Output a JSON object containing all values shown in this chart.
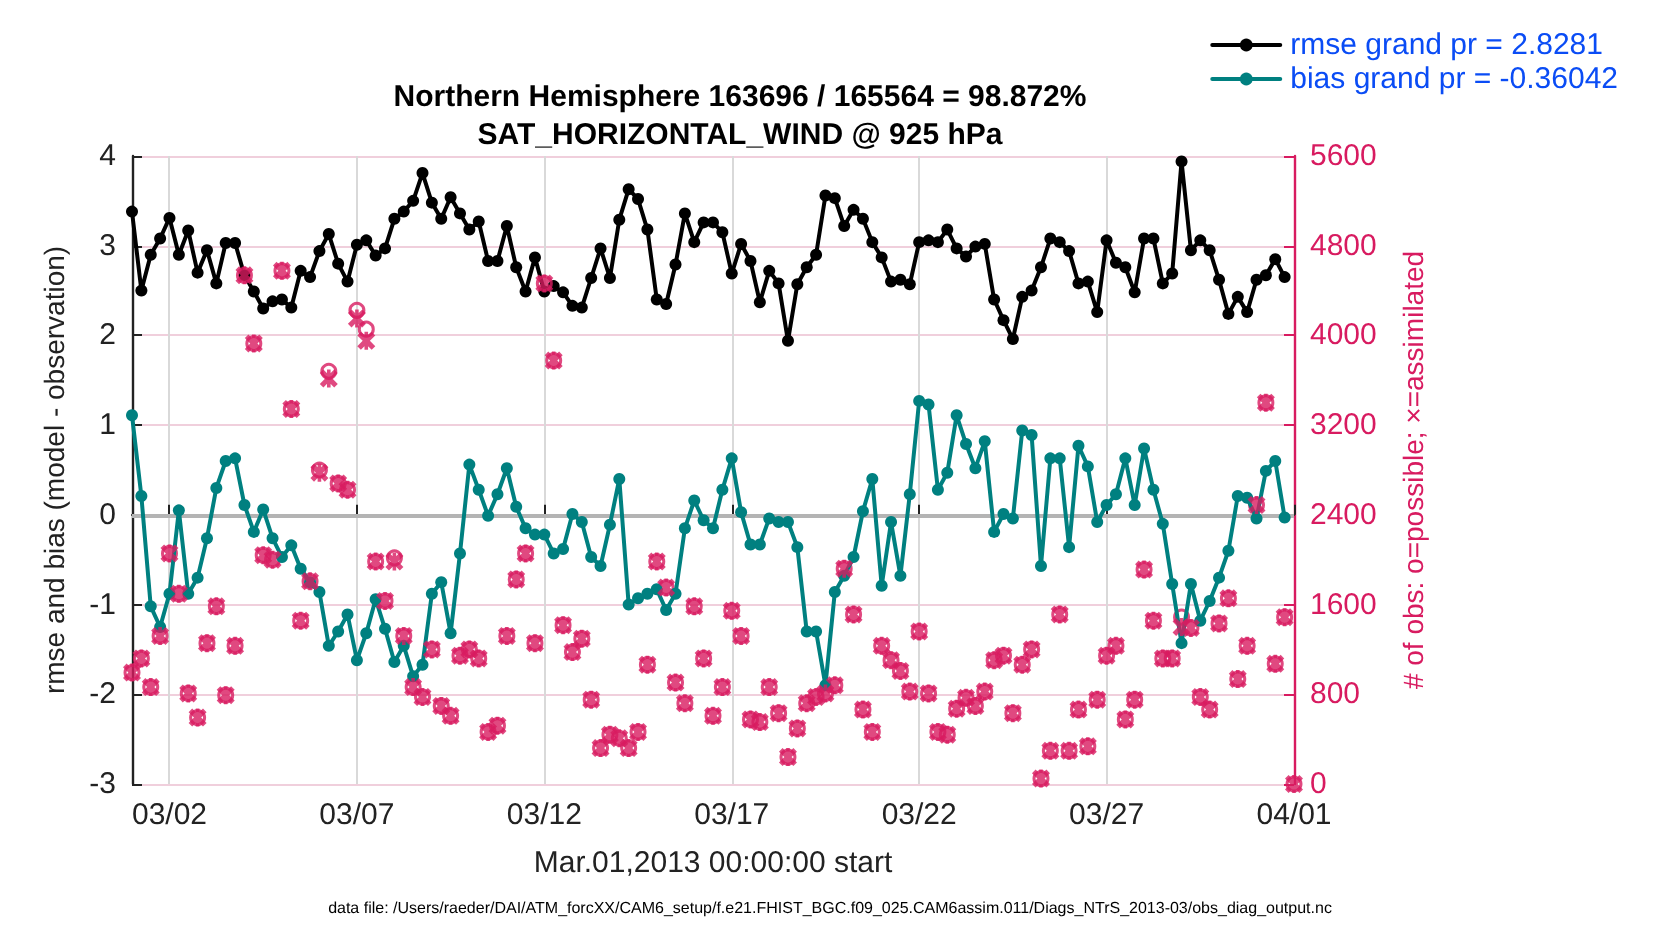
{
  "chart_data": {
    "type": "line",
    "title": "Northern Hemisphere 163696 / 165564 = 98.872%",
    "subtitle": "SAT_HORIZONTAL_WIND @ 925 hPa",
    "xlabel": "Mar.01,2013 00:00:00 start",
    "ylabel": "rmse and bias (model - observation)",
    "y2label": "# of obs: o=possible; ×=assimilated",
    "annotations": [
      "data file: /Users/raeder/DAI/ATM_forcXX/CAM6_setup/f.e21.FHIST_BGC.f09_025.CAM6assim.011/Diags_NTrS_2013-03/obs_diag_output.nc"
    ],
    "x": [
      "2013-03-01T00:00",
      "2013-03-01T06:00",
      "2013-03-01T12:00",
      "2013-03-01T18:00",
      "2013-03-02T00:00",
      "2013-03-02T06:00",
      "2013-03-02T12:00",
      "2013-03-02T18:00",
      "2013-03-03T00:00",
      "2013-03-03T06:00",
      "2013-03-03T12:00",
      "2013-03-03T18:00",
      "2013-03-04T00:00",
      "2013-03-04T06:00",
      "2013-03-04T12:00",
      "2013-03-04T18:00",
      "2013-03-05T00:00",
      "2013-03-05T06:00",
      "2013-03-05T12:00",
      "2013-03-05T18:00",
      "2013-03-06T00:00",
      "2013-03-06T06:00",
      "2013-03-06T12:00",
      "2013-03-06T18:00",
      "2013-03-07T00:00",
      "2013-03-07T06:00",
      "2013-03-07T12:00",
      "2013-03-07T18:00",
      "2013-03-08T00:00",
      "2013-03-08T06:00",
      "2013-03-08T12:00",
      "2013-03-08T18:00",
      "2013-03-09T00:00",
      "2013-03-09T06:00",
      "2013-03-09T12:00",
      "2013-03-09T18:00",
      "2013-03-10T00:00",
      "2013-03-10T06:00",
      "2013-03-10T12:00",
      "2013-03-10T18:00",
      "2013-03-11T00:00",
      "2013-03-11T06:00",
      "2013-03-11T12:00",
      "2013-03-11T18:00",
      "2013-03-12T00:00",
      "2013-03-12T06:00",
      "2013-03-12T12:00",
      "2013-03-12T18:00",
      "2013-03-13T00:00",
      "2013-03-13T06:00",
      "2013-03-13T12:00",
      "2013-03-13T18:00",
      "2013-03-14T00:00",
      "2013-03-14T06:00",
      "2013-03-14T12:00",
      "2013-03-14T18:00",
      "2013-03-15T00:00",
      "2013-03-15T06:00",
      "2013-03-15T12:00",
      "2013-03-15T18:00",
      "2013-03-16T00:00",
      "2013-03-16T06:00",
      "2013-03-16T12:00",
      "2013-03-16T18:00",
      "2013-03-17T00:00",
      "2013-03-17T06:00",
      "2013-03-17T12:00",
      "2013-03-17T18:00",
      "2013-03-18T00:00",
      "2013-03-18T06:00",
      "2013-03-18T12:00",
      "2013-03-18T18:00",
      "2013-03-19T00:00",
      "2013-03-19T06:00",
      "2013-03-19T12:00",
      "2013-03-19T18:00",
      "2013-03-20T00:00",
      "2013-03-20T06:00",
      "2013-03-20T12:00",
      "2013-03-20T18:00",
      "2013-03-21T00:00",
      "2013-03-21T06:00",
      "2013-03-21T12:00",
      "2013-03-21T18:00",
      "2013-03-22T00:00",
      "2013-03-22T06:00",
      "2013-03-22T12:00",
      "2013-03-22T18:00",
      "2013-03-23T00:00",
      "2013-03-23T06:00",
      "2013-03-23T12:00",
      "2013-03-23T18:00",
      "2013-03-24T00:00",
      "2013-03-24T06:00",
      "2013-03-24T12:00",
      "2013-03-24T18:00",
      "2013-03-25T00:00",
      "2013-03-25T06:00",
      "2013-03-25T12:00",
      "2013-03-25T18:00",
      "2013-03-26T00:00",
      "2013-03-26T06:00",
      "2013-03-26T12:00",
      "2013-03-26T18:00",
      "2013-03-27T00:00",
      "2013-03-27T06:00",
      "2013-03-27T12:00",
      "2013-03-27T18:00",
      "2013-03-28T00:00",
      "2013-03-28T06:00",
      "2013-03-28T12:00",
      "2013-03-28T18:00",
      "2013-03-29T00:00",
      "2013-03-29T06:00",
      "2013-03-29T12:00",
      "2013-03-29T18:00",
      "2013-03-30T00:00",
      "2013-03-30T06:00",
      "2013-03-30T12:00",
      "2013-03-30T18:00",
      "2013-03-31T00:00",
      "2013-03-31T06:00",
      "2013-03-31T12:00",
      "2013-03-31T18:00",
      "2013-04-01T00:00"
    ],
    "series": [
      {
        "name": "rmse grand pr = 2.8281",
        "color": "#000000",
        "marker": "circle",
        "values": [
          3.38,
          2.5,
          2.9,
          3.08,
          3.31,
          2.9,
          3.17,
          2.7,
          2.95,
          2.58,
          3.03,
          3.03,
          2.67,
          2.49,
          2.3,
          2.38,
          2.4,
          2.31,
          2.72,
          2.65,
          2.94,
          3.13,
          2.8,
          2.6,
          3.01,
          3.06,
          2.89,
          2.97,
          3.3,
          3.38,
          3.5,
          3.81,
          3.48,
          3.3,
          3.54,
          3.36,
          3.18,
          3.27,
          2.83,
          2.83,
          3.22,
          2.76,
          2.49,
          2.87,
          2.49,
          2.55,
          2.48,
          2.33,
          2.31,
          2.64,
          2.97,
          2.64,
          3.29,
          3.63,
          3.52,
          3.18,
          2.4,
          2.35,
          2.79,
          3.36,
          3.04,
          3.26,
          3.26,
          3.15,
          2.69,
          3.02,
          2.83,
          2.37,
          2.72,
          2.58,
          1.94,
          2.57,
          2.76,
          2.9,
          3.56,
          3.53,
          3.22,
          3.4,
          3.3,
          3.04,
          2.87,
          2.6,
          2.62,
          2.57,
          3.04,
          3.06,
          3.04,
          3.18,
          2.97,
          2.88,
          2.99,
          3.02,
          2.4,
          2.17,
          1.96,
          2.43,
          2.5,
          2.76,
          3.08,
          3.04,
          2.94,
          2.58,
          2.6,
          2.26,
          3.06,
          2.81,
          2.76,
          2.48,
          3.08,
          3.08,
          2.58,
          2.69,
          3.94,
          2.95,
          3.06,
          2.95,
          2.62,
          2.24,
          2.43,
          2.26,
          2.62,
          2.67,
          2.85,
          2.65,
          null
        ]
      },
      {
        "name": "bias grand pr = -0.36042",
        "color": "#008080",
        "marker": "circle",
        "values": [
          1.11,
          0.21,
          -1.02,
          -1.25,
          -0.88,
          0.05,
          -0.88,
          -0.7,
          -0.26,
          0.3,
          0.6,
          0.63,
          0.11,
          -0.19,
          0.06,
          -0.26,
          -0.47,
          -0.34,
          -0.6,
          -0.75,
          -0.86,
          -1.46,
          -1.3,
          -1.11,
          -1.62,
          -1.32,
          -0.94,
          -1.27,
          -1.64,
          -1.46,
          -1.8,
          -1.67,
          -0.88,
          -0.75,
          -1.32,
          -0.43,
          0.56,
          0.28,
          -0.01,
          0.23,
          0.52,
          0.09,
          -0.15,
          -0.22,
          -0.22,
          -0.43,
          -0.38,
          0.01,
          -0.08,
          -0.47,
          -0.57,
          -0.11,
          0.4,
          -1.0,
          -0.93,
          -0.88,
          -0.83,
          -1.06,
          -0.88,
          -0.15,
          0.16,
          -0.06,
          -0.15,
          0.28,
          0.63,
          0.03,
          -0.33,
          -0.33,
          -0.04,
          -0.08,
          -0.08,
          -0.36,
          -1.3,
          -1.3,
          -1.9,
          -0.86,
          -0.68,
          -0.47,
          0.04,
          0.4,
          -0.79,
          -0.08,
          -0.68,
          0.23,
          1.27,
          1.23,
          0.28,
          0.47,
          1.11,
          0.79,
          0.52,
          0.82,
          -0.19,
          0.01,
          -0.04,
          0.94,
          0.89,
          -0.57,
          0.63,
          0.63,
          -0.36,
          0.77,
          0.54,
          -0.08,
          0.11,
          0.23,
          0.63,
          0.11,
          0.74,
          0.28,
          -0.1,
          -0.77,
          -1.43,
          -0.77,
          -1.18,
          -0.96,
          -0.7,
          -0.4,
          0.21,
          0.19,
          -0.04,
          0.49,
          0.6,
          -0.03,
          null
        ]
      },
      {
        "type": "scatter",
        "axis": "y2",
        "color": "#d81b60",
        "marker": "circle",
        "values": [
          994,
          1120,
          864,
          1320,
          2056,
          1696,
          808,
          592,
          1256,
          1584,
          792,
          1232,
          4536,
          3928,
          2040,
          2000,
          4576,
          3344,
          1456,
          1808,
          2800,
          3680,
          2680,
          2624,
          4224,
          4056,
          1984,
          1632,
          2016,
          1320,
          864,
          776,
          1200,
          696,
          608,
          1144,
          1200,
          1120,
          464,
          520,
          1320,
          1824,
          2056,
          1256,
          4464,
          3776,
          1416,
          1176,
          1296,
          752,
          320,
          440,
          408,
          320,
          464,
          1064,
          1984,
          1752,
          904,
          720,
          1584,
          1120,
          608,
          864,
          1544,
          1320,
          576,
          552,
          864,
          632,
          240,
          496,
          720,
          776,
          808,
          880,
          1920,
          1512,
          664,
          464,
          1232,
          1104,
          1008,
          824,
          1360,
          808,
          464,
          440,
          672,
          768,
          696,
          824,
          1104,
          1144,
          632,
          1064,
          1200,
          48,
          296,
          1512,
          296,
          664,
          336,
          752,
          1144,
          1232,
          576,
          752,
          1912,
          1456,
          1120,
          1120,
          1488,
          1392,
          776,
          664,
          1432,
          1656,
          936,
          1232,
          2488,
          3400,
          1072,
          1488,
          0
        ]
      },
      {
        "type": "scatter",
        "axis": "y2",
        "color": "#d81b60",
        "marker": "cross",
        "values": [
          994,
          1120,
          864,
          1320,
          2056,
          1696,
          808,
          592,
          1256,
          1584,
          792,
          1232,
          4536,
          3928,
          2040,
          2000,
          4576,
          3344,
          1456,
          1808,
          2776,
          3616,
          2680,
          2624,
          4152,
          3952,
          1984,
          1632,
          1984,
          1320,
          864,
          776,
          1200,
          696,
          608,
          1144,
          1200,
          1120,
          464,
          520,
          1320,
          1824,
          2056,
          1256,
          4464,
          3776,
          1416,
          1176,
          1296,
          752,
          320,
          440,
          408,
          320,
          464,
          1064,
          1984,
          1752,
          904,
          720,
          1584,
          1120,
          608,
          864,
          1544,
          1320,
          576,
          552,
          864,
          632,
          240,
          496,
          720,
          776,
          808,
          880,
          1920,
          1512,
          664,
          464,
          1232,
          1104,
          1008,
          824,
          1360,
          808,
          464,
          440,
          672,
          768,
          696,
          824,
          1104,
          1144,
          632,
          1064,
          1200,
          48,
          296,
          1512,
          296,
          664,
          336,
          752,
          1144,
          1232,
          576,
          752,
          1912,
          1456,
          1120,
          1120,
          1400,
          1392,
          776,
          664,
          1432,
          1656,
          936,
          1232,
          2488,
          3400,
          1072,
          1488,
          0
        ]
      }
    ],
    "xlim": [
      "2013-03-01",
      "2013-04-01"
    ],
    "xticks": [
      {
        "value": "2013-03-02",
        "label": "03/02"
      },
      {
        "value": "2013-03-07",
        "label": "03/07"
      },
      {
        "value": "2013-03-12",
        "label": "03/12"
      },
      {
        "value": "2013-03-17",
        "label": "03/17"
      },
      {
        "value": "2013-03-22",
        "label": "03/22"
      },
      {
        "value": "2013-03-27",
        "label": "03/27"
      },
      {
        "value": "2013-04-01",
        "label": "04/01"
      }
    ],
    "ylim": [
      -3,
      4
    ],
    "yticks": [
      -3,
      -2,
      -1,
      0,
      1,
      2,
      3,
      4
    ],
    "y2lim": [
      0,
      5600
    ],
    "y2ticks": [
      0,
      800,
      1600,
      2400,
      3200,
      4000,
      4800,
      5600
    ],
    "ref_lines": [
      {
        "axis": "y",
        "value": 0,
        "color": "#b4b4b4"
      }
    ],
    "grid": true,
    "legend": "top right",
    "line_style": "solid"
  }
}
